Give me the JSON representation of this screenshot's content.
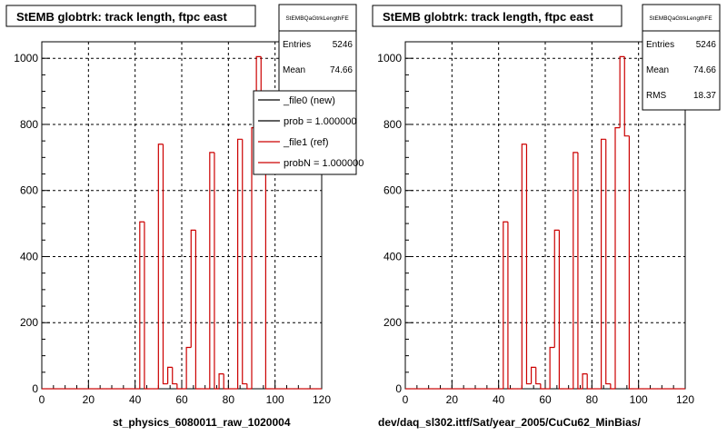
{
  "chart_data": [
    {
      "type": "histogram",
      "title": "StEMB globtrk: track length, ftpc east",
      "stats": {
        "name": "StEMBQaGtrkLengthFE",
        "rows": [
          {
            "label": "Entries",
            "value": "5246"
          },
          {
            "label": "Mean",
            "value": "74.66"
          }
        ]
      },
      "legend": {
        "placement": "top-right",
        "entries": [
          {
            "label": "_file0 (new)",
            "color": "#000000"
          },
          {
            "label": "prob = 1.000000",
            "color": "#000000"
          },
          {
            "label": "_file1 (ref)",
            "color": "#cc0000"
          },
          {
            "label": "probN = 1.000000",
            "color": "#cc0000"
          }
        ]
      },
      "xlabel": "st_physics_6080011_raw_1020004",
      "xlim": [
        0,
        120
      ],
      "ylim": [
        0,
        1050
      ],
      "xticks": [
        0,
        20,
        40,
        60,
        80,
        100,
        120
      ],
      "yticks": [
        0,
        200,
        400,
        600,
        800,
        1000
      ],
      "grid": true,
      "series": [
        {
          "color": "#cc0000",
          "bin_edges": [
            0,
            2,
            4,
            6,
            8,
            10,
            12,
            14,
            16,
            18,
            20,
            22,
            24,
            26,
            28,
            30,
            32,
            34,
            36,
            38,
            40,
            42,
            44,
            46,
            48,
            50,
            52,
            54,
            56,
            58,
            60,
            62,
            64,
            66,
            68,
            70,
            72,
            74,
            76,
            78,
            80,
            82,
            84,
            86,
            88,
            90,
            92,
            94,
            96,
            98,
            100,
            102,
            104,
            106,
            108,
            110,
            112,
            114,
            116,
            118,
            120
          ],
          "counts": [
            0,
            0,
            0,
            0,
            0,
            0,
            0,
            0,
            0,
            0,
            0,
            0,
            0,
            0,
            0,
            0,
            0,
            0,
            0,
            0,
            0,
            505,
            0,
            0,
            0,
            740,
            15,
            65,
            15,
            0,
            0,
            125,
            480,
            0,
            0,
            0,
            715,
            0,
            45,
            0,
            0,
            0,
            755,
            15,
            0,
            790,
            1005,
            765,
            0,
            0,
            0,
            0,
            0,
            0,
            0,
            0,
            0,
            0,
            0,
            0
          ]
        }
      ]
    },
    {
      "type": "histogram",
      "title": "StEMB globtrk: track length, ftpc east",
      "stats": {
        "name": "StEMBQaGtrkLengthFE",
        "rows": [
          {
            "label": "Entries",
            "value": "5246"
          },
          {
            "label": "Mean",
            "value": "74.66"
          },
          {
            "label": "RMS",
            "value": "18.37"
          }
        ]
      },
      "xlabel": "dev/daq_sl302.ittf/Sat/year_2005/CuCu62_MinBias/",
      "xlim": [
        0,
        120
      ],
      "ylim": [
        0,
        1050
      ],
      "xticks": [
        0,
        20,
        40,
        60,
        80,
        100,
        120
      ],
      "yticks": [
        0,
        200,
        400,
        600,
        800,
        1000
      ],
      "grid": true,
      "series": [
        {
          "color": "#cc0000",
          "bin_edges": [
            0,
            2,
            4,
            6,
            8,
            10,
            12,
            14,
            16,
            18,
            20,
            22,
            24,
            26,
            28,
            30,
            32,
            34,
            36,
            38,
            40,
            42,
            44,
            46,
            48,
            50,
            52,
            54,
            56,
            58,
            60,
            62,
            64,
            66,
            68,
            70,
            72,
            74,
            76,
            78,
            80,
            82,
            84,
            86,
            88,
            90,
            92,
            94,
            96,
            98,
            100,
            102,
            104,
            106,
            108,
            110,
            112,
            114,
            116,
            118,
            120
          ],
          "counts": [
            0,
            0,
            0,
            0,
            0,
            0,
            0,
            0,
            0,
            0,
            0,
            0,
            0,
            0,
            0,
            0,
            0,
            0,
            0,
            0,
            0,
            505,
            0,
            0,
            0,
            740,
            15,
            65,
            15,
            0,
            0,
            125,
            480,
            0,
            0,
            0,
            715,
            0,
            45,
            0,
            0,
            0,
            755,
            15,
            0,
            790,
            1005,
            765,
            0,
            0,
            0,
            0,
            0,
            0,
            0,
            0,
            0,
            0,
            0,
            0
          ]
        }
      ]
    }
  ]
}
